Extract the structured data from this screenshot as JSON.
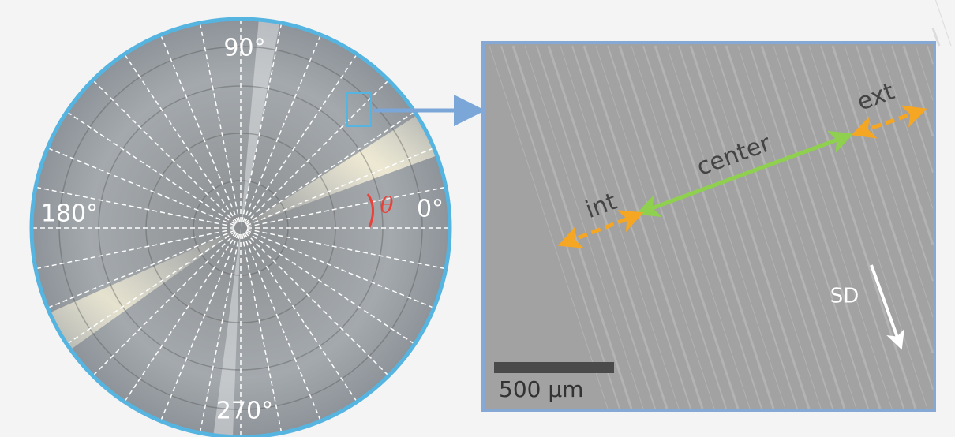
{
  "polar_image": {
    "angle_labels": [
      "90°",
      "180°",
      "0°",
      "270°"
    ],
    "theta": "θ"
  },
  "sem_image": {
    "annotations": {
      "int": "int",
      "center": "center",
      "ext": "ext",
      "direction": "SD"
    },
    "scale_bar": "500 µm"
  }
}
